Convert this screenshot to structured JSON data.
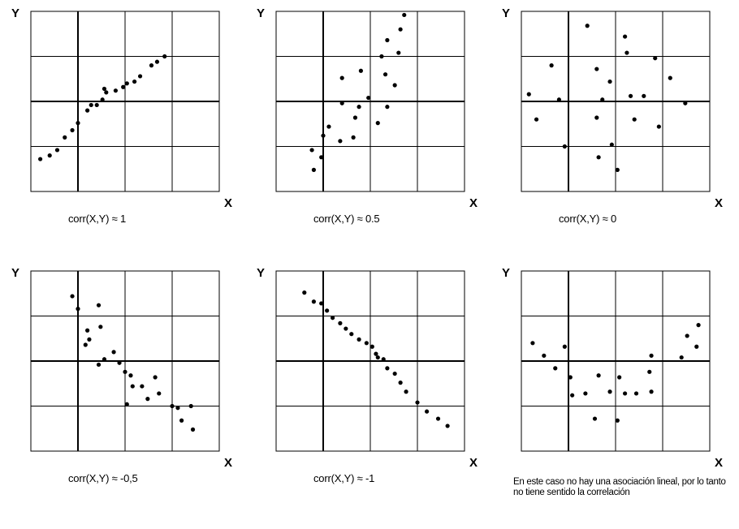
{
  "chart_data": [
    {
      "type": "scatter",
      "xlabel": "X",
      "ylabel": "Y",
      "caption": "corr(X,Y) ≈ 1",
      "xlim": [
        0,
        10
      ],
      "ylim": [
        0,
        10
      ],
      "grid": true,
      "points": [
        [
          0.5,
          1.8
        ],
        [
          1,
          2
        ],
        [
          1.4,
          2.3
        ],
        [
          1.8,
          3
        ],
        [
          2.2,
          3.4
        ],
        [
          2.5,
          3.8
        ],
        [
          3,
          4.5
        ],
        [
          3.2,
          4.8
        ],
        [
          3.5,
          4.8
        ],
        [
          3.8,
          5.1
        ],
        [
          3.9,
          5.7
        ],
        [
          4,
          5.5
        ],
        [
          4.5,
          5.6
        ],
        [
          4.9,
          5.8
        ],
        [
          5.1,
          6
        ],
        [
          5.5,
          6.1
        ],
        [
          5.8,
          6.4
        ],
        [
          6.4,
          7
        ],
        [
          6.7,
          7.2
        ],
        [
          7.1,
          7.5
        ]
      ]
    },
    {
      "type": "scatter",
      "xlabel": "X",
      "ylabel": "Y",
      "caption": "corr(X,Y) ≈ 0.5",
      "xlim": [
        0,
        10
      ],
      "ylim": [
        0,
        10
      ],
      "grid": true,
      "points": [
        [
          2,
          1.2
        ],
        [
          1.9,
          2.3
        ],
        [
          2.4,
          1.9
        ],
        [
          2.5,
          3.1
        ],
        [
          2.8,
          3.6
        ],
        [
          3.4,
          2.8
        ],
        [
          3.5,
          4.9
        ],
        [
          3.5,
          6.3
        ],
        [
          4.1,
          3
        ],
        [
          4.2,
          4.1
        ],
        [
          4.4,
          4.7
        ],
        [
          4.5,
          6.7
        ],
        [
          4.9,
          5.2
        ],
        [
          5.4,
          3.8
        ],
        [
          5.6,
          7.5
        ],
        [
          5.8,
          6.5
        ],
        [
          5.9,
          8.4
        ],
        [
          5.9,
          4.7
        ],
        [
          6.3,
          5.9
        ],
        [
          6.5,
          7.7
        ],
        [
          6.6,
          9
        ],
        [
          6.8,
          9.8
        ]
      ]
    },
    {
      "type": "scatter",
      "xlabel": "X",
      "ylabel": "Y",
      "caption": "corr(X,Y) ≈ 0",
      "xlim": [
        0,
        10
      ],
      "ylim": [
        0,
        10
      ],
      "grid": true,
      "points": [
        [
          0.4,
          5.4
        ],
        [
          0.8,
          4
        ],
        [
          1.6,
          7
        ],
        [
          2,
          5.1
        ],
        [
          2.3,
          2.5
        ],
        [
          3.5,
          9.2
        ],
        [
          4,
          6.8
        ],
        [
          4,
          4.1
        ],
        [
          4.1,
          1.9
        ],
        [
          4.3,
          5.1
        ],
        [
          4.7,
          6.1
        ],
        [
          4.8,
          2.6
        ],
        [
          5.1,
          1.2
        ],
        [
          5.5,
          8.6
        ],
        [
          5.6,
          7.7
        ],
        [
          5.8,
          5.3
        ],
        [
          6,
          4
        ],
        [
          6.5,
          5.3
        ],
        [
          7.1,
          7.4
        ],
        [
          7.3,
          3.6
        ],
        [
          7.9,
          6.3
        ],
        [
          8.7,
          4.9
        ]
      ]
    },
    {
      "type": "scatter",
      "xlabel": "X",
      "ylabel": "Y",
      "caption": "corr(X,Y) ≈ -0,5",
      "xlim": [
        0,
        10
      ],
      "ylim": [
        0,
        10
      ],
      "grid": true,
      "points": [
        [
          2.2,
          8.6
        ],
        [
          2.5,
          7.9
        ],
        [
          3,
          6.7
        ],
        [
          3.1,
          6.2
        ],
        [
          3.6,
          8.1
        ],
        [
          3.7,
          6.9
        ],
        [
          2.9,
          5.9
        ],
        [
          3.6,
          4.8
        ],
        [
          3.9,
          5.1
        ],
        [
          4.4,
          5.5
        ],
        [
          4.7,
          4.9
        ],
        [
          5,
          4.4
        ],
        [
          5.3,
          4.2
        ],
        [
          5.4,
          3.6
        ],
        [
          5.1,
          2.6
        ],
        [
          5.9,
          3.6
        ],
        [
          6.2,
          2.9
        ],
        [
          6.6,
          4.1
        ],
        [
          6.8,
          3.2
        ],
        [
          7.5,
          2.5
        ],
        [
          7.8,
          2.4
        ],
        [
          8,
          1.7
        ],
        [
          8.5,
          2.5
        ],
        [
          8.6,
          1.2
        ]
      ]
    },
    {
      "type": "scatter",
      "xlabel": "X",
      "ylabel": "Y",
      "caption": "corr(X,Y) ≈ -1",
      "xlim": [
        0,
        10
      ],
      "ylim": [
        0,
        10
      ],
      "grid": true,
      "points": [
        [
          1.5,
          8.8
        ],
        [
          2,
          8.3
        ],
        [
          2.4,
          8.2
        ],
        [
          2.7,
          7.8
        ],
        [
          3,
          7.4
        ],
        [
          3.4,
          7.1
        ],
        [
          3.7,
          6.8
        ],
        [
          4,
          6.5
        ],
        [
          4.4,
          6.2
        ],
        [
          4.8,
          6
        ],
        [
          5.1,
          5.8
        ],
        [
          5.3,
          5.4
        ],
        [
          5.4,
          5.2
        ],
        [
          5.7,
          5.1
        ],
        [
          5.9,
          4.6
        ],
        [
          6.3,
          4.3
        ],
        [
          6.6,
          3.8
        ],
        [
          6.9,
          3.3
        ],
        [
          7.5,
          2.7
        ],
        [
          8,
          2.2
        ],
        [
          8.6,
          1.8
        ],
        [
          9.1,
          1.4
        ]
      ]
    },
    {
      "type": "scatter",
      "xlabel": "X",
      "ylabel": "Y",
      "caption": "",
      "note": "En este caso no hay una asociación lineal, por lo tanto no tiene sentido la correlación",
      "xlim": [
        0,
        10
      ],
      "ylim": [
        0,
        10
      ],
      "grid": true,
      "points": [
        [
          0.6,
          6
        ],
        [
          1.2,
          5.3
        ],
        [
          1.8,
          4.6
        ],
        [
          2.3,
          5.8
        ],
        [
          2.6,
          4.1
        ],
        [
          2.7,
          3.1
        ],
        [
          3.4,
          3.2
        ],
        [
          3.9,
          1.8
        ],
        [
          4.1,
          4.2
        ],
        [
          4.7,
          3.3
        ],
        [
          5.1,
          1.7
        ],
        [
          5.2,
          4.1
        ],
        [
          5.5,
          3.2
        ],
        [
          6.1,
          3.2
        ],
        [
          6.9,
          5.3
        ],
        [
          6.8,
          4.4
        ],
        [
          6.9,
          3.3
        ],
        [
          8.5,
          5.2
        ],
        [
          8.8,
          6.4
        ],
        [
          9.3,
          5.8
        ],
        [
          9.4,
          7
        ]
      ]
    }
  ]
}
